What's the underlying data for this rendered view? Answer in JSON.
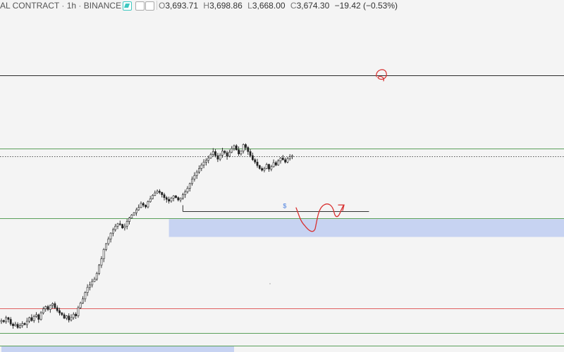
{
  "header": {
    "symbol_label": "AL CONTRACT",
    "interval": "1h",
    "exchange": "BINANCE",
    "ohlc": [
      {
        "key": "O",
        "value": "3,693.71"
      },
      {
        "key": "H",
        "value": "3,698.86"
      },
      {
        "key": "L",
        "value": "3,668.00"
      },
      {
        "key": "C",
        "value": "3,674.30"
      }
    ],
    "change": "−19.42 (−0.53%)"
  },
  "chart_data": {
    "type": "candlestick",
    "ylim": [
      3000,
      4160
    ],
    "candles_close": [
      3108,
      3104,
      3118,
      3112,
      3096,
      3090,
      3095,
      3084,
      3090,
      3098,
      3094,
      3106,
      3118,
      3108,
      3122,
      3128,
      3112,
      3134,
      3148,
      3156,
      3146,
      3160,
      3166,
      3152,
      3142,
      3134,
      3128,
      3116,
      3124,
      3110,
      3118,
      3130,
      3124,
      3152,
      3168,
      3182,
      3204,
      3222,
      3230,
      3242,
      3250,
      3270,
      3298,
      3320,
      3352,
      3372,
      3388,
      3408,
      3420,
      3432,
      3440,
      3438,
      3426,
      3432,
      3448,
      3460,
      3470,
      3478,
      3488,
      3496,
      3510,
      3504,
      3498,
      3516,
      3526,
      3538,
      3546,
      3552,
      3548,
      3540,
      3530,
      3524,
      3518,
      3528,
      3536,
      3530,
      3522,
      3528,
      3540,
      3550,
      3562,
      3578,
      3594,
      3606,
      3618,
      3630,
      3642,
      3652,
      3658,
      3666,
      3678,
      3688,
      3674,
      3662,
      3676,
      3690,
      3684,
      3672,
      3686,
      3698,
      3708,
      3694,
      3680,
      3690,
      3712,
      3702,
      3688,
      3674,
      3660,
      3652,
      3640,
      3630,
      3624,
      3630,
      3644,
      3628,
      3636,
      3650,
      3642,
      3656,
      3666,
      3660,
      3652,
      3664,
      3670,
      3674
    ],
    "levels": [
      {
        "price": 3950,
        "color": "#2b2b2b"
      },
      {
        "price": 3698,
        "color": "#5aa05a"
      },
      {
        "price": 3672,
        "color": "#555555",
        "style": "dotted"
      },
      {
        "price": 3460,
        "color": "#5aa05a"
      },
      {
        "price": 3150,
        "color": "#e06060"
      },
      {
        "price": 3065,
        "color": "#5aa05a"
      },
      {
        "price": 3022,
        "color": "#5aa05a"
      }
    ],
    "zones": [
      {
        "from_price": 3395,
        "to_price": 3456,
        "from_candle": 72,
        "color": "#c7d3f2"
      },
      {
        "from_price": 3000,
        "to_price": 3020,
        "from_candle": 0,
        "to_candle": 100,
        "color": "#c7d3f2"
      }
    ],
    "target_line": {
      "price": 3483,
      "from_candle": 78,
      "to_candle": 158,
      "label": "$"
    },
    "annotation_color": "#d83030",
    "label_color": "#4a7fe0"
  }
}
